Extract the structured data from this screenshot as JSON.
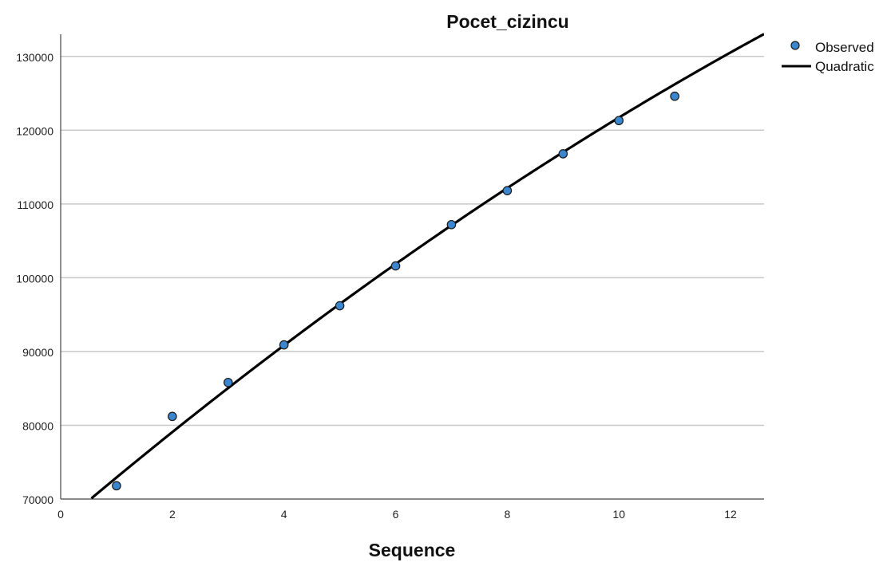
{
  "chart_data": {
    "type": "scatter",
    "title": "Pocet_cizincu",
    "xlabel": "Sequence",
    "ylabel": "",
    "xlim": [
      0,
      12.6
    ],
    "ylim": [
      70000,
      133000
    ],
    "x_ticks": [
      0,
      2,
      4,
      6,
      8,
      10,
      12
    ],
    "y_ticks": [
      70000,
      80000,
      90000,
      100000,
      110000,
      120000,
      130000
    ],
    "grid": "horizontal",
    "legend_position": "top-right",
    "series": [
      {
        "name": "Observed",
        "kind": "points",
        "color": "#3a86cf",
        "points": [
          {
            "x": 1,
            "y": 71800
          },
          {
            "x": 2,
            "y": 81200
          },
          {
            "x": 3,
            "y": 85800
          },
          {
            "x": 4,
            "y": 90900
          },
          {
            "x": 5,
            "y": 96200
          },
          {
            "x": 6,
            "y": 101600
          },
          {
            "x": 7,
            "y": 107200
          },
          {
            "x": 8,
            "y": 111800
          },
          {
            "x": 9,
            "y": 116800
          },
          {
            "x": 10,
            "y": 121300
          },
          {
            "x": 11,
            "y": 124600
          }
        ]
      },
      {
        "name": "Quadratic",
        "kind": "line",
        "color": "#000000",
        "coefficients": {
          "a": -91.7,
          "b": 6430,
          "c": 66580
        },
        "x_range": [
          0.55,
          12.6
        ]
      }
    ]
  }
}
